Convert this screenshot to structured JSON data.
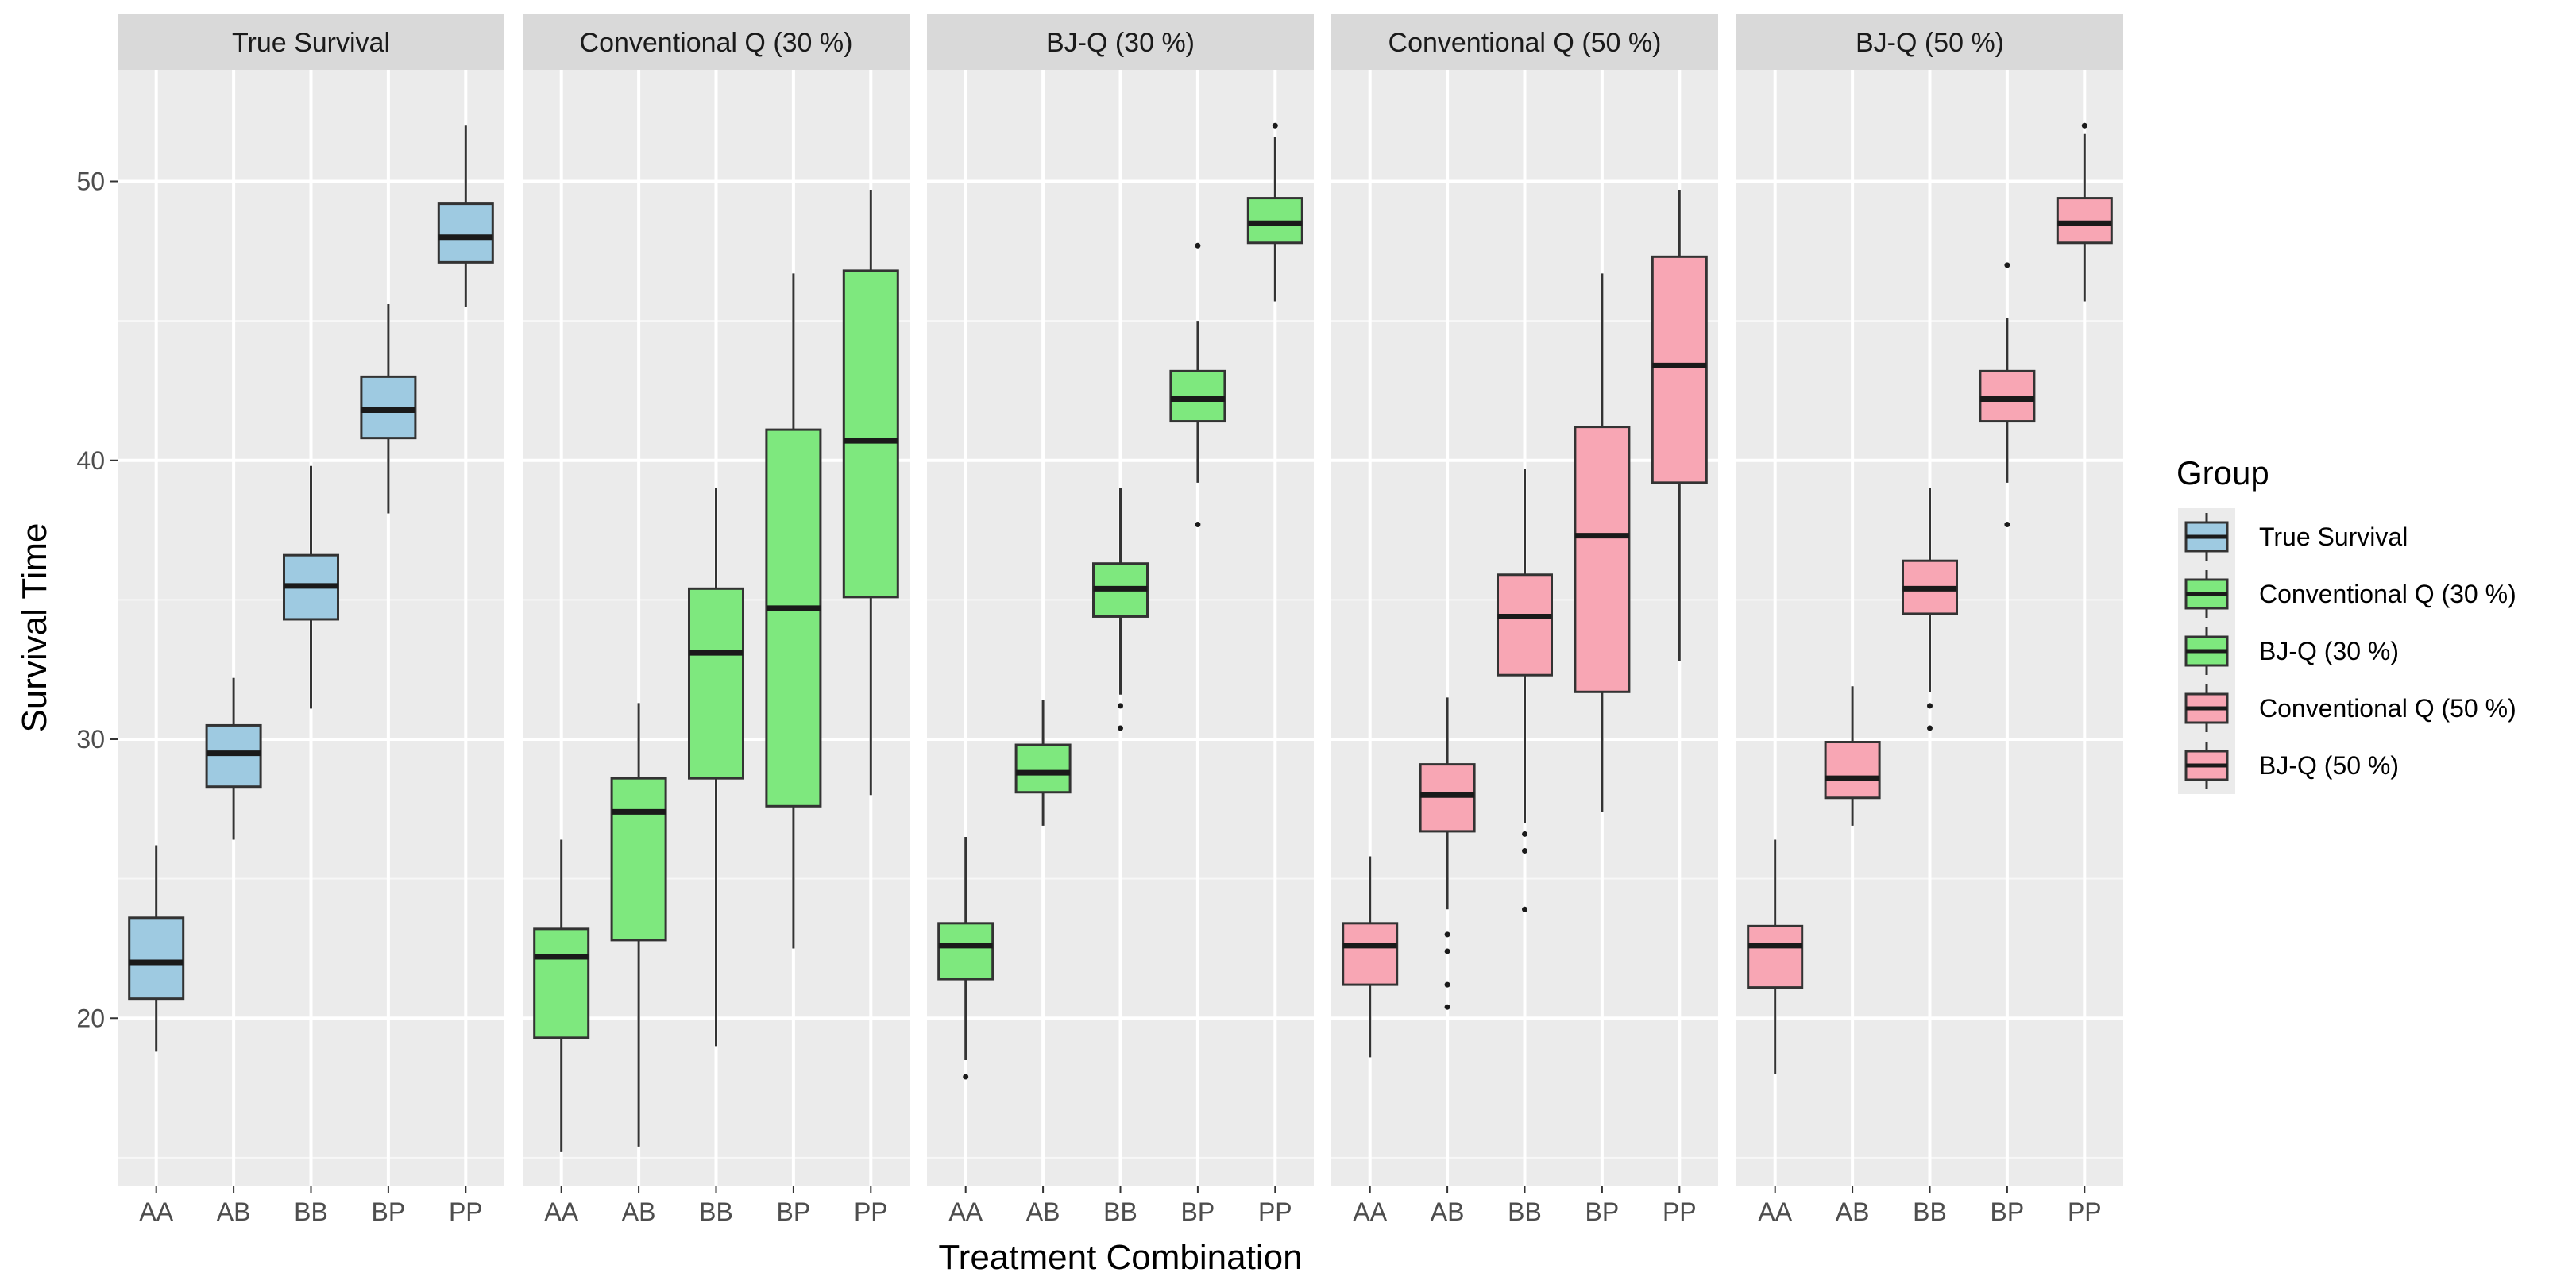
{
  "chart_data": {
    "type": "boxplot",
    "title": "",
    "xlabel": "Treatment Combination",
    "ylabel": "Survival Time",
    "categories": [
      "AA",
      "AB",
      "BB",
      "BP",
      "PP"
    ],
    "ylim": [
      14,
      54
    ],
    "yticks": [
      20,
      30,
      40,
      50
    ],
    "grid": true,
    "legend": {
      "title": "Group",
      "position": "right"
    },
    "panels": [
      {
        "name": "True Survival",
        "color": "#9ecae1",
        "boxes": [
          {
            "category": "AA",
            "min": 18.8,
            "q1": 20.7,
            "median": 22.0,
            "q3": 23.6,
            "max": 26.2,
            "outliers": []
          },
          {
            "category": "AB",
            "min": 26.4,
            "q1": 28.3,
            "median": 29.5,
            "q3": 30.5,
            "max": 32.2,
            "outliers": []
          },
          {
            "category": "BB",
            "min": 31.1,
            "q1": 34.3,
            "median": 35.5,
            "q3": 36.6,
            "max": 39.8,
            "outliers": []
          },
          {
            "category": "BP",
            "min": 38.1,
            "q1": 40.8,
            "median": 41.8,
            "q3": 43.0,
            "max": 45.6,
            "outliers": []
          },
          {
            "category": "PP",
            "min": 45.5,
            "q1": 47.1,
            "median": 48.0,
            "q3": 49.2,
            "max": 52.0,
            "outliers": []
          }
        ]
      },
      {
        "name": "Conventional Q (30 %)",
        "color": "#7ee87e",
        "boxes": [
          {
            "category": "AA",
            "min": 15.2,
            "q1": 19.3,
            "median": 22.2,
            "q3": 23.2,
            "max": 26.4,
            "outliers": []
          },
          {
            "category": "AB",
            "min": 15.4,
            "q1": 22.8,
            "median": 27.4,
            "q3": 28.6,
            "max": 31.3,
            "outliers": []
          },
          {
            "category": "BB",
            "min": 19.0,
            "q1": 28.6,
            "median": 33.1,
            "q3": 35.4,
            "max": 39.0,
            "outliers": []
          },
          {
            "category": "BP",
            "min": 22.5,
            "q1": 27.6,
            "median": 34.7,
            "q3": 41.1,
            "max": 46.7,
            "outliers": []
          },
          {
            "category": "PP",
            "min": 28.0,
            "q1": 35.1,
            "median": 40.7,
            "q3": 46.8,
            "max": 49.7,
            "outliers": []
          }
        ]
      },
      {
        "name": "BJ-Q (30 %)",
        "color": "#7ee87e",
        "boxes": [
          {
            "category": "AA",
            "min": 18.5,
            "q1": 21.4,
            "median": 22.6,
            "q3": 23.4,
            "max": 26.5,
            "outliers": [
              17.9
            ]
          },
          {
            "category": "AB",
            "min": 26.9,
            "q1": 28.1,
            "median": 28.8,
            "q3": 29.8,
            "max": 31.4,
            "outliers": []
          },
          {
            "category": "BB",
            "min": 31.6,
            "q1": 34.4,
            "median": 35.4,
            "q3": 36.3,
            "max": 39.0,
            "outliers": [
              31.2,
              30.4
            ]
          },
          {
            "category": "BP",
            "min": 39.2,
            "q1": 41.4,
            "median": 42.2,
            "q3": 43.2,
            "max": 45.0,
            "outliers": [
              47.7,
              37.7
            ]
          },
          {
            "category": "PP",
            "min": 45.7,
            "q1": 47.8,
            "median": 48.5,
            "q3": 49.4,
            "max": 51.6,
            "outliers": [
              52.0
            ]
          }
        ]
      },
      {
        "name": "Conventional Q (50 %)",
        "color": "#f8a6b4",
        "boxes": [
          {
            "category": "AA",
            "min": 18.6,
            "q1": 21.2,
            "median": 22.6,
            "q3": 23.4,
            "max": 25.8,
            "outliers": []
          },
          {
            "category": "AB",
            "min": 23.9,
            "q1": 26.7,
            "median": 28.0,
            "q3": 29.1,
            "max": 31.5,
            "outliers": [
              23.0,
              22.4,
              21.2,
              20.4
            ]
          },
          {
            "category": "BB",
            "min": 27.0,
            "q1": 32.3,
            "median": 34.4,
            "q3": 35.9,
            "max": 39.7,
            "outliers": [
              26.6,
              26.0,
              23.9
            ]
          },
          {
            "category": "BP",
            "min": 27.4,
            "q1": 31.7,
            "median": 37.3,
            "q3": 41.2,
            "max": 46.7,
            "outliers": []
          },
          {
            "category": "PP",
            "min": 32.8,
            "q1": 39.2,
            "median": 43.4,
            "q3": 47.3,
            "max": 49.7,
            "outliers": []
          }
        ]
      },
      {
        "name": "BJ-Q (50 %)",
        "color": "#f8a6b4",
        "boxes": [
          {
            "category": "AA",
            "min": 18.0,
            "q1": 21.1,
            "median": 22.6,
            "q3": 23.3,
            "max": 26.4,
            "outliers": []
          },
          {
            "category": "AB",
            "min": 26.9,
            "q1": 27.9,
            "median": 28.6,
            "q3": 29.9,
            "max": 31.9,
            "outliers": []
          },
          {
            "category": "BB",
            "min": 31.7,
            "q1": 34.5,
            "median": 35.4,
            "q3": 36.4,
            "max": 39.0,
            "outliers": [
              31.2,
              30.4
            ]
          },
          {
            "category": "BP",
            "min": 39.2,
            "q1": 41.4,
            "median": 42.2,
            "q3": 43.2,
            "max": 45.1,
            "outliers": [
              47.0,
              37.7
            ]
          },
          {
            "category": "PP",
            "min": 45.7,
            "q1": 47.8,
            "median": 48.5,
            "q3": 49.4,
            "max": 51.7,
            "outliers": [
              52.0
            ]
          }
        ]
      }
    ]
  }
}
